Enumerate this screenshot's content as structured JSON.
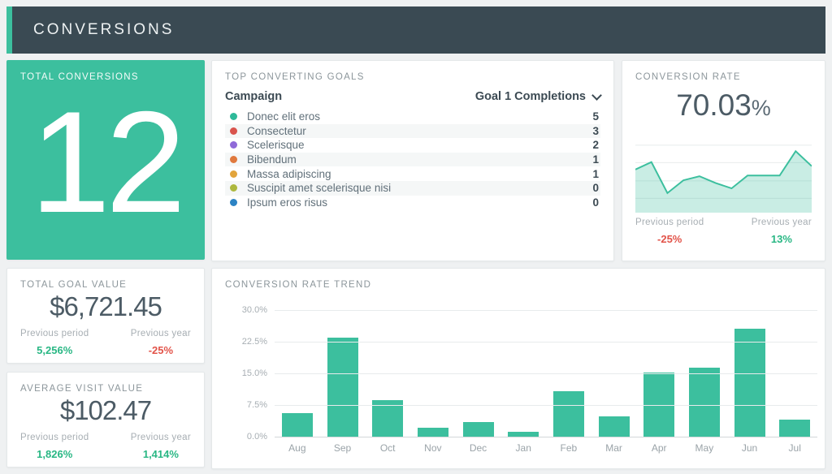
{
  "palette": {
    "accent_teal": "#3cbf9e",
    "header_dark": "#3a4a53",
    "positive": "#29b784",
    "negative": "#e25349",
    "text_dark": "#3c4a53",
    "text_muted": "#8c969b"
  },
  "header": {
    "title": "CONVERSIONS"
  },
  "cards": {
    "total_conversions": {
      "title": "TOTAL CONVERSIONS",
      "value": "12"
    },
    "top_goals": {
      "title": "TOP CONVERTING GOALS",
      "columns": {
        "campaign": "Campaign",
        "completions": "Goal 1 Completions"
      },
      "sort_icon": "chevron-down",
      "rows": [
        {
          "label": "Donec elit eros",
          "value": "5",
          "color": "#2eb999"
        },
        {
          "label": "Consectetur",
          "value": "3",
          "color": "#d9544d"
        },
        {
          "label": "Scelerisque",
          "value": "2",
          "color": "#8f6ad8"
        },
        {
          "label": "Bibendum",
          "value": "1",
          "color": "#e0793e"
        },
        {
          "label": "Massa adipiscing",
          "value": "1",
          "color": "#e2a43b"
        },
        {
          "label": "Suscipit amet scelerisque nisi",
          "value": "0",
          "color": "#adb83e"
        },
        {
          "label": "Ipsum eros risus",
          "value": "0",
          "color": "#2c83c4"
        }
      ]
    },
    "conversion_rate": {
      "title": "CONVERSION RATE",
      "value": "70.03",
      "unit": "%",
      "prev_period": {
        "label": "Previous period",
        "value": "-25%",
        "direction": "negative"
      },
      "prev_year": {
        "label": "Previous year",
        "value": "13%",
        "direction": "positive"
      }
    },
    "total_goal_value": {
      "title": "TOTAL GOAL VALUE",
      "value": "$6,721.45",
      "prev_period": {
        "label": "Previous period",
        "value": "5,256%",
        "direction": "positive"
      },
      "prev_year": {
        "label": "Previous year",
        "value": "-25%",
        "direction": "negative"
      }
    },
    "average_visit_value": {
      "title": "AVERAGE VISIT VALUE",
      "value": "$102.47",
      "prev_period": {
        "label": "Previous period",
        "value": "1,826%",
        "direction": "positive"
      },
      "prev_year": {
        "label": "Previous year",
        "value": "1,414%",
        "direction": "positive"
      }
    },
    "trend": {
      "title": "CONVERSION RATE TREND"
    }
  },
  "chart_data": [
    {
      "type": "area",
      "name": "conversion-rate-sparkline",
      "title": "CONVERSION RATE",
      "points_relative": [
        0.64,
        0.75,
        0.29,
        0.48,
        0.54,
        0.44,
        0.36,
        0.55,
        0.55,
        0.55,
        0.91,
        0.69
      ],
      "line_color": "#3cbf9e",
      "fill_color": "rgba(60,191,158,0.28)",
      "grid": true,
      "legend": false
    },
    {
      "type": "bar",
      "title": "CONVERSION RATE TREND",
      "categories": [
        "Aug",
        "Sep",
        "Oct",
        "Nov",
        "Dec",
        "Jan",
        "Feb",
        "Mar",
        "Apr",
        "May",
        "Jun",
        "Jul"
      ],
      "values": [
        5.5,
        23.5,
        8.6,
        2.1,
        3.5,
        1.2,
        10.8,
        4.8,
        15.2,
        16.3,
        25.6,
        4.0
      ],
      "unit": "%",
      "ylim": [
        0,
        30
      ],
      "yticks": [
        "30.0%",
        "22.5%",
        "15.0%",
        "7.5%",
        "0.0%"
      ],
      "bar_color": "#3cbf9e",
      "grid": true,
      "legend": false
    }
  ]
}
